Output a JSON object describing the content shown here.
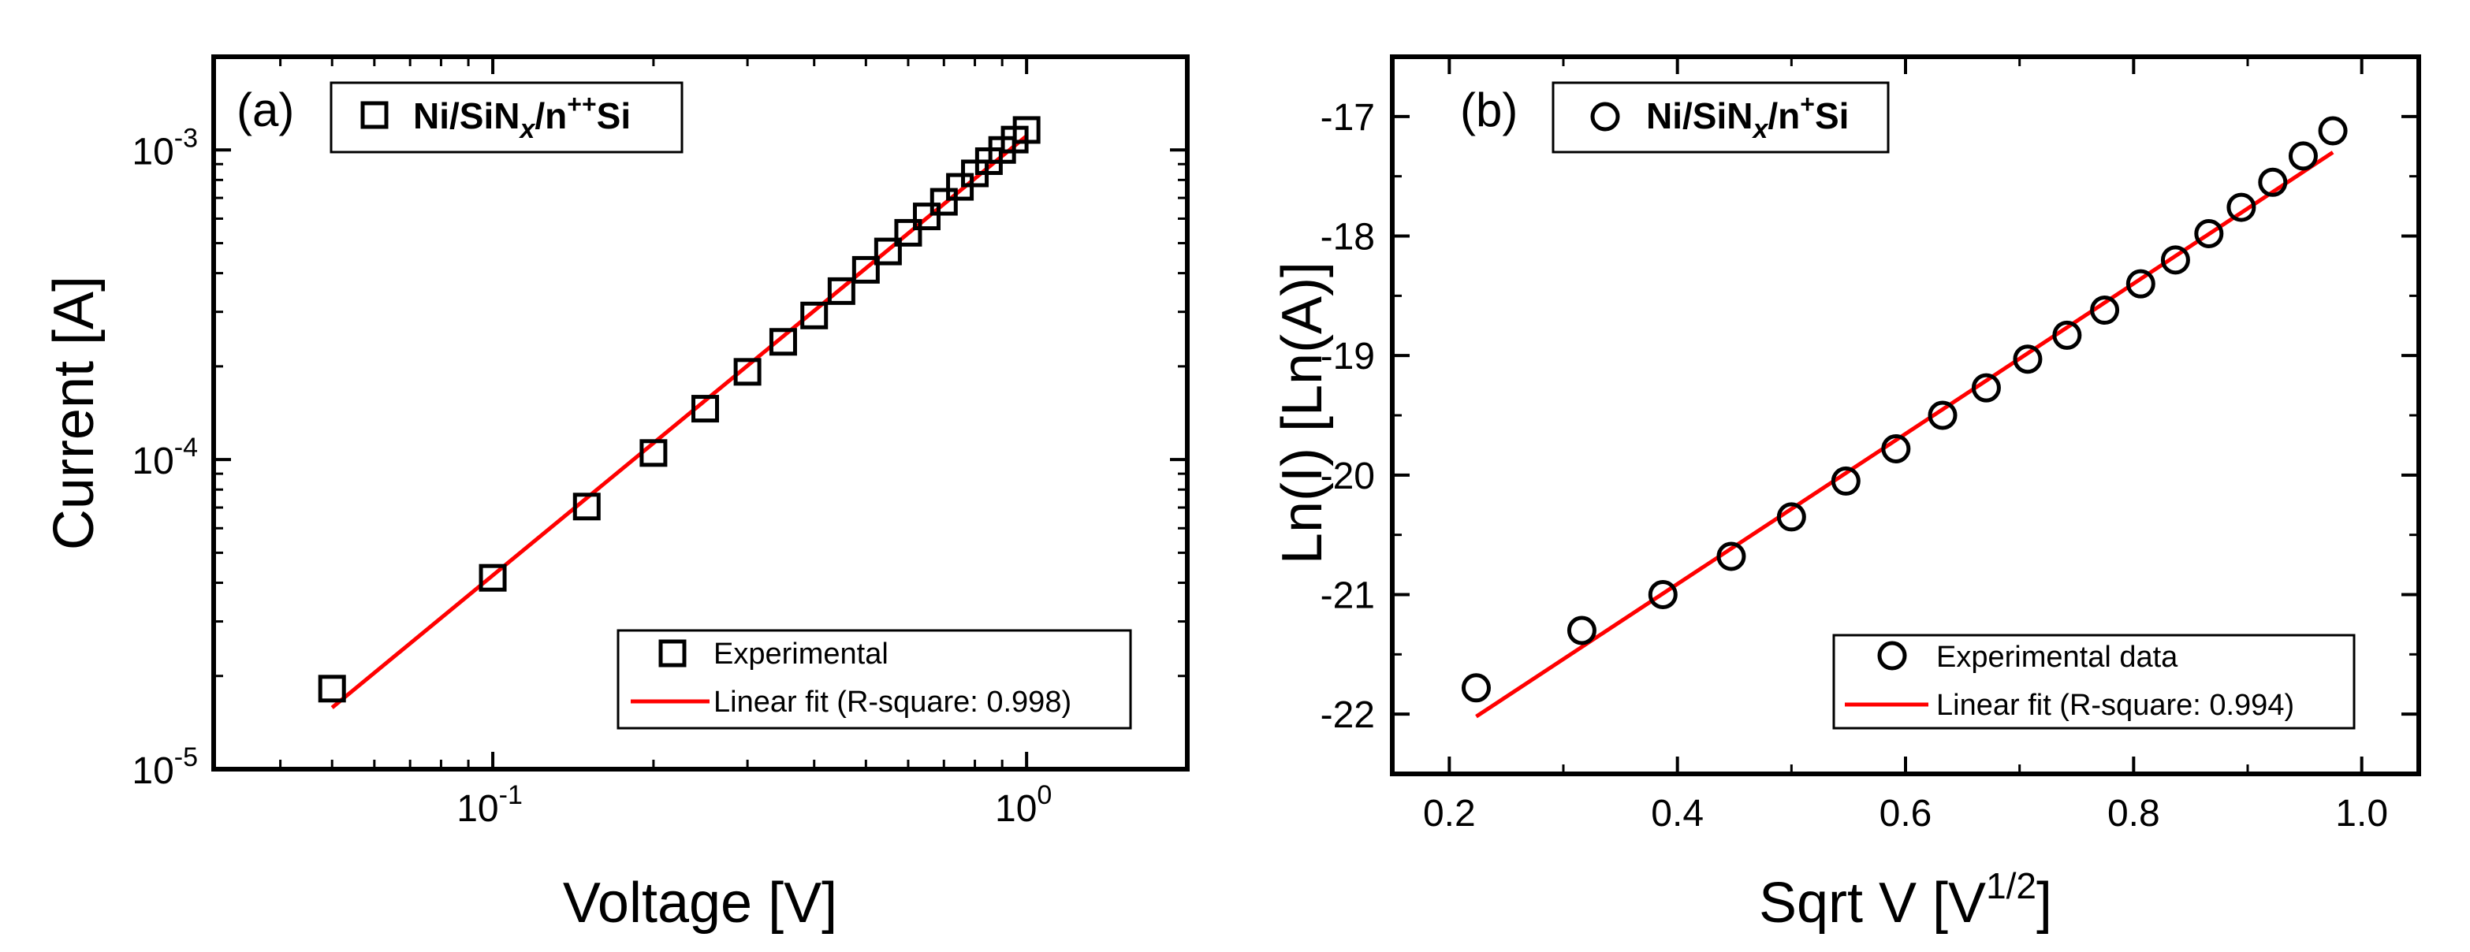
{
  "colors": {
    "axis": "#000000",
    "marker": "#000000",
    "fit": "#ff0000",
    "background": "#ffffff"
  },
  "chart_data": [
    {
      "panel": "(a)",
      "type": "scatter",
      "xscale": "log",
      "yscale": "log",
      "xlim": [
        0.03,
        2.0
      ],
      "ylim": [
        1e-05,
        0.002
      ],
      "xlabel": "Voltage [V]",
      "ylabel": "Current [A]",
      "x_major_ticks": [
        {
          "value": 0.1,
          "base": "10",
          "exp": "-1"
        },
        {
          "value": 1.0,
          "base": "10",
          "exp": "0"
        }
      ],
      "y_major_ticks": [
        {
          "value": 1e-05,
          "base": "10",
          "exp": "-5"
        },
        {
          "value": 0.0001,
          "base": "10",
          "exp": "-4"
        },
        {
          "value": 0.001,
          "base": "10",
          "exp": "-3"
        }
      ],
      "series_label": {
        "prefix": "Ni/SiN",
        "sub": "x",
        "mid": "/n",
        "sup": "++",
        "suffix": "Si"
      },
      "legend": {
        "position": "bottom-right",
        "entries": [
          "Experimental",
          "Linear fit (R-square: 0.998)"
        ]
      },
      "marker": "square",
      "x": [
        0.05,
        0.1,
        0.15,
        0.2,
        0.25,
        0.3,
        0.35,
        0.4,
        0.45,
        0.5,
        0.55,
        0.6,
        0.65,
        0.7,
        0.75,
        0.8,
        0.85,
        0.9,
        0.95,
        1.0
      ],
      "y": [
        1.82e-05,
        4.15e-05,
        7.05e-05,
        0.000105,
        0.000146,
        0.000192,
        0.00024,
        0.000292,
        0.00035,
        0.00041,
        0.00047,
        0.00054,
        0.00061,
        0.00068,
        0.00076,
        0.00084,
        0.00092,
        0.001,
        0.00108,
        0.00116
      ],
      "fit": {
        "x": [
          0.05,
          1.0
        ],
        "y": [
          1.58e-05,
          0.00111
        ]
      }
    },
    {
      "panel": "(b)",
      "type": "scatter",
      "xscale": "linear",
      "yscale": "linear",
      "xlim": [
        0.15,
        1.05
      ],
      "ylim": [
        -22.5,
        -16.5
      ],
      "xticks": [
        0.2,
        0.4,
        0.6,
        0.8,
        1.0
      ],
      "xtick_labels": [
        "0.2",
        "0.4",
        "0.6",
        "0.8",
        "1.0"
      ],
      "yticks": [
        -22,
        -21,
        -20,
        -19,
        -18,
        -17
      ],
      "ytick_labels": [
        "-22",
        "-21",
        "-20",
        "-19",
        "-18",
        "-17"
      ],
      "xlabel": {
        "text": "Sqrt V [V",
        "sup": "1/2",
        "close": "]"
      },
      "ylabel": "Ln(I) [Ln(A)]",
      "series_label": {
        "prefix": "Ni/SiN",
        "sub": "x",
        "mid": "/n",
        "sup": "+",
        "suffix": "Si"
      },
      "legend": {
        "position": "bottom-right",
        "entries": [
          "Experimental data",
          "Linear fit (R-square: 0.994)"
        ]
      },
      "marker": "circle",
      "x": [
        0.2236,
        0.3162,
        0.3873,
        0.4472,
        0.5,
        0.5477,
        0.5916,
        0.6325,
        0.6708,
        0.7071,
        0.7416,
        0.7746,
        0.8062,
        0.8367,
        0.866,
        0.8944,
        0.922,
        0.9487,
        0.9747
      ],
      "y": [
        -21.78,
        -21.3,
        -21.0,
        -20.68,
        -20.35,
        -20.05,
        -19.78,
        -19.5,
        -19.27,
        -19.03,
        -18.83,
        -18.62,
        -18.4,
        -18.2,
        -17.98,
        -17.76,
        -17.55,
        -17.33,
        -17.12
      ],
      "fit": {
        "x": [
          0.2236,
          0.9747
        ],
        "y": [
          -22.02,
          -17.3
        ]
      }
    }
  ]
}
